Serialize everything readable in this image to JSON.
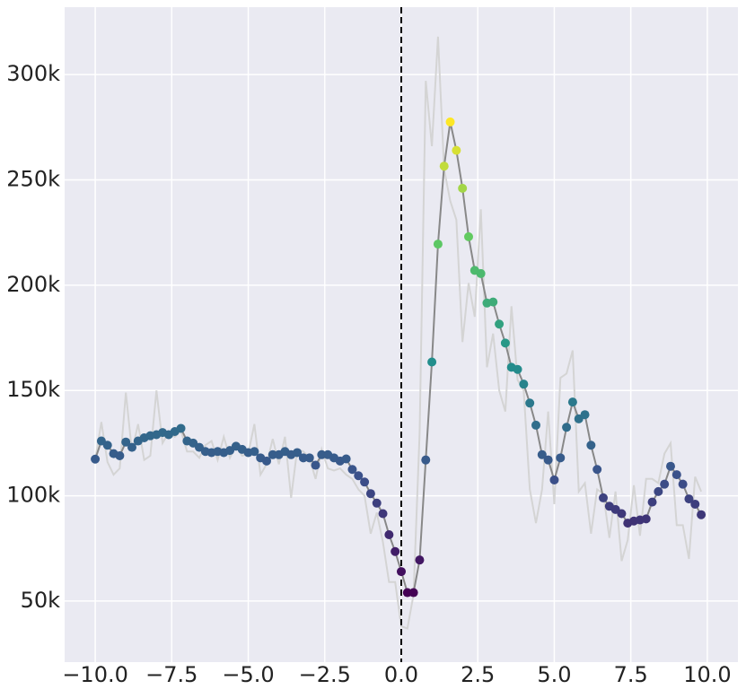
{
  "chart_data": {
    "type": "line",
    "x": [
      -10.0,
      -9.8,
      -9.6,
      -9.4,
      -9.2,
      -9.0,
      -8.8,
      -8.6,
      -8.4,
      -8.2,
      -8.0,
      -7.8,
      -7.6,
      -7.4,
      -7.2,
      -7.0,
      -6.8,
      -6.6,
      -6.4,
      -6.2,
      -6.0,
      -5.8,
      -5.6,
      -5.4,
      -5.2,
      -5.0,
      -4.8,
      -4.6,
      -4.4,
      -4.2,
      -4.0,
      -3.8,
      -3.6,
      -3.4,
      -3.2,
      -3.0,
      -2.8,
      -2.6,
      -2.4,
      -2.2,
      -2.0,
      -1.8,
      -1.6,
      -1.4,
      -1.2,
      -1.0,
      -0.8,
      -0.6,
      -0.4,
      -0.2,
      0.0,
      0.2,
      0.4,
      0.6,
      0.8,
      1.0,
      1.2,
      1.4,
      1.6,
      1.8,
      2.0,
      2.2,
      2.4,
      2.6,
      2.8,
      3.0,
      3.2,
      3.4,
      3.6,
      3.8,
      4.0,
      4.2,
      4.4,
      4.6,
      4.8,
      5.0,
      5.2,
      5.4,
      5.6,
      5.8,
      6.0,
      6.2,
      6.4,
      6.6,
      6.8,
      7.0,
      7.2,
      7.4,
      7.6,
      7.8,
      8.0,
      8.2,
      8.4,
      8.6,
      8.8,
      9.0,
      9.2,
      9.4,
      9.6,
      9.8
    ],
    "series": [
      {
        "color": "#d4d4d4",
        "values": [
          117000,
          135000,
          116000,
          110000,
          113000,
          149000,
          121000,
          134000,
          117000,
          119000,
          150000,
          125000,
          130000,
          128000,
          131000,
          121000,
          121000,
          118000,
          124000,
          126000,
          117000,
          128000,
          118000,
          124000,
          119000,
          120000,
          134000,
          110000,
          115000,
          127000,
          115000,
          128000,
          99000,
          122000,
          121000,
          118000,
          108000,
          122000,
          113000,
          112000,
          113000,
          110000,
          108000,
          103000,
          100000,
          82000,
          92000,
          78000,
          59000,
          59000,
          38000,
          37000,
          53000,
          130000,
          297000,
          266000,
          318000,
          255000,
          240000,
          231000,
          173000,
          201000,
          185000,
          236000,
          161000,
          177000,
          150000,
          140000,
          190000,
          155000,
          150000,
          103000,
          87000,
          103000,
          140000,
          96000,
          156000,
          158000,
          169000,
          102000,
          106000,
          82000,
          103000,
          101000,
          80000,
          102000,
          69000,
          79000,
          105000,
          81000,
          108000,
          108000,
          106000,
          120000,
          125000,
          86000,
          86000,
          70000,
          109000,
          102000
        ]
      },
      {
        "color": "#888888",
        "markers": true,
        "cmap": "viridis",
        "values": [
          117400,
          126000,
          124000,
          120000,
          119000,
          125500,
          123000,
          126000,
          127500,
          128500,
          129000,
          130000,
          129000,
          130500,
          132000,
          126000,
          125000,
          123000,
          121000,
          120500,
          121000,
          120500,
          121500,
          123500,
          122000,
          120500,
          121000,
          118000,
          116500,
          119500,
          119500,
          121000,
          119500,
          120500,
          118000,
          118000,
          114500,
          119500,
          119500,
          118000,
          116500,
          117500,
          112500,
          109500,
          106500,
          101000,
          96500,
          91500,
          81500,
          73500,
          64000,
          54000,
          54000,
          69500,
          117000,
          163500,
          219500,
          256500,
          277500,
          264000,
          246000,
          223000,
          207000,
          205500,
          191500,
          192000,
          181500,
          172500,
          161000,
          160000,
          153000,
          144000,
          133500,
          119500,
          117000,
          107500,
          118000,
          132500,
          144500,
          136500,
          138500,
          124000,
          112500,
          99000,
          95000,
          93500,
          91500,
          87000,
          88000,
          88500,
          89000,
          97000,
          102000,
          105500,
          114000,
          110000,
          105500,
          98500,
          96000,
          91000
        ]
      }
    ],
    "xlim": [
      -11,
      11
    ],
    "ylim": [
      21000,
      332000
    ],
    "xticks": [
      {
        "value": -10,
        "label": "−10.0"
      },
      {
        "value": -7.5,
        "label": "−7.5"
      },
      {
        "value": -5,
        "label": "−5.0"
      },
      {
        "value": -2.5,
        "label": "−2.5"
      },
      {
        "value": 0,
        "label": "0.0"
      },
      {
        "value": 2.5,
        "label": "2.5"
      },
      {
        "value": 5,
        "label": "5.0"
      },
      {
        "value": 7.5,
        "label": "7.5"
      },
      {
        "value": 10,
        "label": "10.0"
      }
    ],
    "yticks": [
      {
        "value": 50000,
        "label": "50k"
      },
      {
        "value": 100000,
        "label": "100k"
      },
      {
        "value": 150000,
        "label": "150k"
      },
      {
        "value": 200000,
        "label": "200k"
      },
      {
        "value": 250000,
        "label": "250k"
      },
      {
        "value": 300000,
        "label": "300k"
      }
    ],
    "grid": true,
    "vline": 0
  }
}
